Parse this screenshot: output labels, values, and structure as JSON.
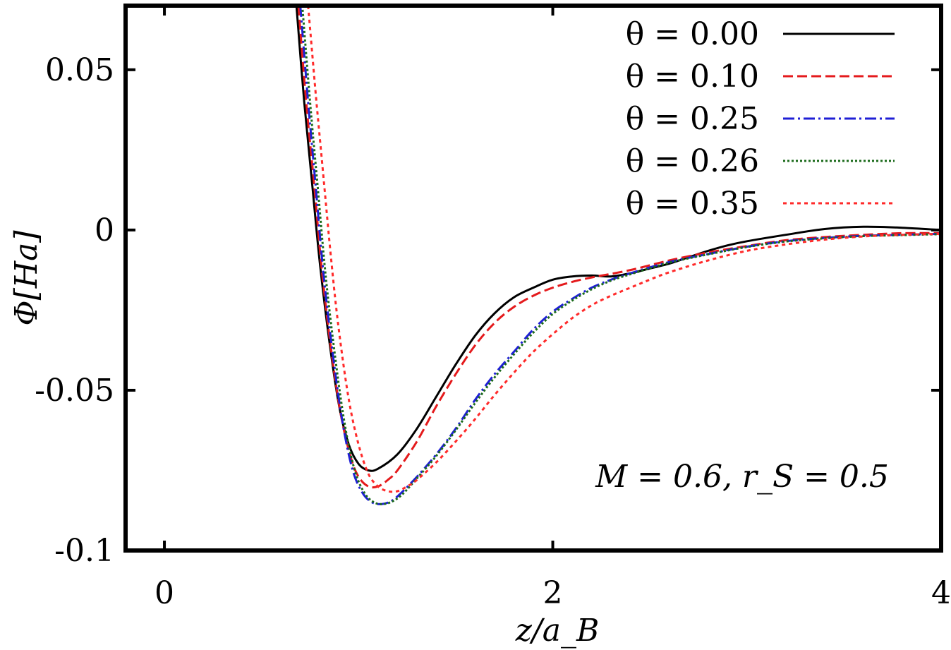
{
  "chart_data": {
    "type": "line",
    "xlabel": "z/a_B",
    "ylabel": "Φ[Ha]",
    "xlim": [
      -0.2,
      4.0
    ],
    "ylim": [
      -0.1,
      0.07
    ],
    "x_ticks": [
      0,
      2,
      4
    ],
    "x_tick_labels": [
      "0",
      "2",
      "4"
    ],
    "y_ticks": [
      0.05,
      0,
      -0.05,
      -0.1
    ],
    "y_tick_labels": [
      "0.05",
      "0",
      "-0.05",
      "-0.1"
    ],
    "grid": false,
    "legend_placement": "top-right",
    "annotation": "M = 0.6, r_S = 0.5",
    "series": [
      {
        "name": "θ = 0.00",
        "color": "#000000",
        "dash": "solid",
        "x": [
          0.68,
          0.72,
          0.76,
          0.8,
          0.85,
          0.9,
          0.95,
          1.0,
          1.05,
          1.1,
          1.2,
          1.3,
          1.4,
          1.5,
          1.6,
          1.7,
          1.8,
          1.9,
          2.0,
          2.1,
          2.2,
          2.3,
          2.4,
          2.5,
          2.6,
          2.7,
          2.8,
          2.9,
          3.0,
          3.2,
          3.4,
          3.6,
          3.8,
          4.0
        ],
        "y": [
          0.07,
          0.04,
          0.015,
          -0.01,
          -0.035,
          -0.055,
          -0.067,
          -0.073,
          -0.075,
          -0.0745,
          -0.07,
          -0.062,
          -0.052,
          -0.042,
          -0.033,
          -0.026,
          -0.021,
          -0.018,
          -0.0155,
          -0.0145,
          -0.0142,
          -0.0145,
          -0.0135,
          -0.012,
          -0.0105,
          -0.0085,
          -0.0065,
          -0.0048,
          -0.0035,
          -0.0015,
          0.0003,
          0.001,
          0.0007,
          0.0
        ]
      },
      {
        "name": "θ = 0.10",
        "color": "#e41a1c",
        "dash": "14,6",
        "x": [
          0.69,
          0.73,
          0.77,
          0.81,
          0.86,
          0.91,
          0.96,
          1.0,
          1.05,
          1.1,
          1.15,
          1.2,
          1.3,
          1.4,
          1.5,
          1.6,
          1.7,
          1.8,
          1.9,
          2.0,
          2.1,
          2.2,
          2.4,
          2.6,
          2.8,
          3.0,
          3.2,
          3.4,
          3.6,
          3.8,
          4.0
        ],
        "y": [
          0.07,
          0.04,
          0.015,
          -0.012,
          -0.038,
          -0.058,
          -0.071,
          -0.077,
          -0.08,
          -0.08,
          -0.078,
          -0.075,
          -0.066,
          -0.055,
          -0.045,
          -0.036,
          -0.029,
          -0.024,
          -0.0205,
          -0.018,
          -0.0162,
          -0.0148,
          -0.0125,
          -0.0095,
          -0.007,
          -0.005,
          -0.0032,
          -0.0022,
          -0.0015,
          -0.001,
          -0.001
        ]
      },
      {
        "name": "θ = 0.25",
        "color": "#1f1fd6",
        "dash": "16,5,3,5",
        "x": [
          0.7,
          0.74,
          0.78,
          0.82,
          0.87,
          0.92,
          0.97,
          1.02,
          1.07,
          1.12,
          1.17,
          1.22,
          1.3,
          1.4,
          1.5,
          1.6,
          1.7,
          1.8,
          1.9,
          2.0,
          2.1,
          2.2,
          2.3,
          2.4,
          2.6,
          2.8,
          3.0,
          3.2,
          3.4,
          3.6,
          3.8,
          4.0
        ],
        "y": [
          0.07,
          0.04,
          0.013,
          -0.014,
          -0.04,
          -0.061,
          -0.075,
          -0.082,
          -0.085,
          -0.0855,
          -0.0845,
          -0.082,
          -0.077,
          -0.07,
          -0.062,
          -0.053,
          -0.045,
          -0.038,
          -0.031,
          -0.0255,
          -0.0215,
          -0.018,
          -0.0155,
          -0.0135,
          -0.01,
          -0.0075,
          -0.0052,
          -0.0035,
          -0.0025,
          -0.0018,
          -0.0015,
          -0.0012
        ]
      },
      {
        "name": "θ = 0.26",
        "color": "#1b6b1b",
        "dash": "3,3",
        "x": [
          0.71,
          0.75,
          0.79,
          0.83,
          0.88,
          0.93,
          0.98,
          1.03,
          1.08,
          1.13,
          1.18,
          1.23,
          1.3,
          1.4,
          1.5,
          1.6,
          1.7,
          1.8,
          1.9,
          2.0,
          2.1,
          2.2,
          2.3,
          2.4,
          2.6,
          2.8,
          3.0,
          3.2,
          3.4,
          3.6,
          3.8,
          4.0
        ],
        "y": [
          0.07,
          0.04,
          0.013,
          -0.014,
          -0.04,
          -0.061,
          -0.075,
          -0.082,
          -0.085,
          -0.0855,
          -0.0845,
          -0.0822,
          -0.0775,
          -0.0705,
          -0.0625,
          -0.054,
          -0.046,
          -0.0388,
          -0.032,
          -0.0262,
          -0.022,
          -0.0185,
          -0.0158,
          -0.0138,
          -0.0102,
          -0.0076,
          -0.0053,
          -0.0036,
          -0.0026,
          -0.0019,
          -0.0016,
          -0.0013
        ]
      },
      {
        "name": "θ = 0.35",
        "color": "#ff2a2a",
        "dash": "5,5",
        "x": [
          0.74,
          0.78,
          0.82,
          0.86,
          0.9,
          0.95,
          1.0,
          1.05,
          1.1,
          1.15,
          1.2,
          1.25,
          1.3,
          1.4,
          1.5,
          1.6,
          1.7,
          1.8,
          1.9,
          2.0,
          2.1,
          2.2,
          2.3,
          2.4,
          2.5,
          2.6,
          2.8,
          3.0,
          3.2,
          3.4,
          3.6,
          3.8,
          4.0
        ],
        "y": [
          0.07,
          0.042,
          0.016,
          -0.01,
          -0.032,
          -0.053,
          -0.067,
          -0.076,
          -0.08,
          -0.0815,
          -0.0815,
          -0.08,
          -0.078,
          -0.0725,
          -0.066,
          -0.059,
          -0.0515,
          -0.0445,
          -0.038,
          -0.0325,
          -0.0275,
          -0.0235,
          -0.0205,
          -0.018,
          -0.0155,
          -0.0132,
          -0.0095,
          -0.0065,
          -0.0045,
          -0.003,
          -0.002,
          -0.0015,
          -0.0012
        ]
      }
    ]
  }
}
